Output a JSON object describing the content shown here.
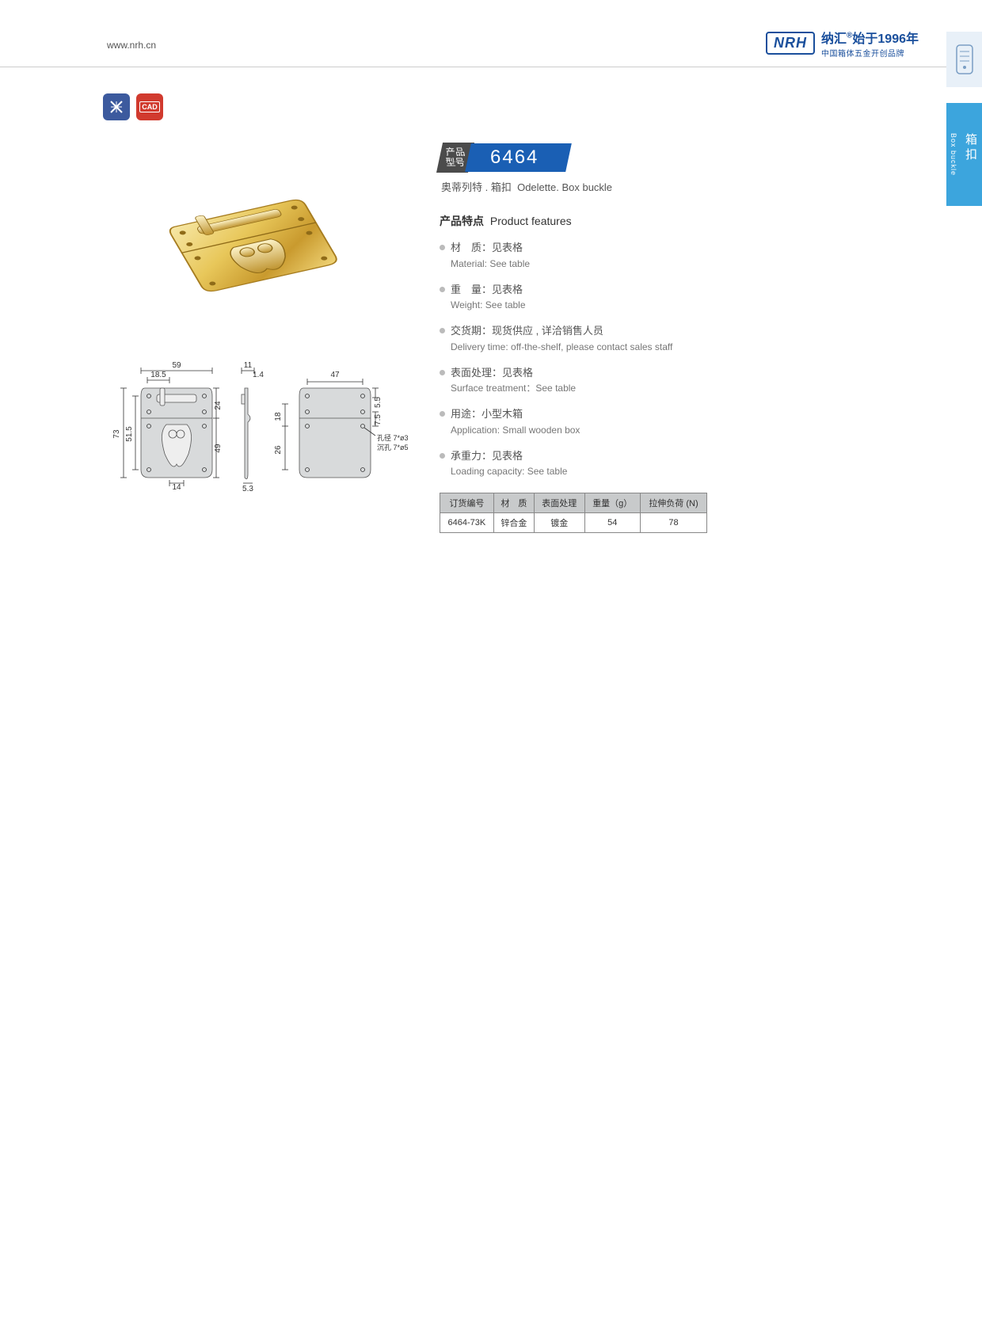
{
  "header": {
    "url": "www.nrh.cn",
    "logo": "NRH",
    "brand_cn": "纳汇",
    "reg": "®",
    "since": "始于1996年",
    "tagline": "中国箱体五金开创品牌"
  },
  "sidetab": {
    "cn": "箱扣",
    "en": "Box buckle"
  },
  "icons": {
    "a": "✕✕",
    "b": "CAD"
  },
  "model": {
    "label_l1": "产品",
    "label_l2": "型号",
    "number": "6464",
    "sub_cn": "奥蒂列特 . 箱扣",
    "sub_en": "Odelette. Box buckle"
  },
  "features": {
    "title_cn": "产品特点",
    "title_en": "Product features",
    "items": [
      {
        "cn": "材　质：见表格",
        "en": "Material: See table"
      },
      {
        "cn": "重　量：见表格",
        "en": "Weight: See table"
      },
      {
        "cn": "交货期：现货供应 , 详洽销售人员",
        "en": "Delivery time: off-the-shelf, please contact sales staff"
      },
      {
        "cn": "表面处理：见表格",
        "en": "Surface treatment：See table"
      },
      {
        "cn": "用途：小型木箱",
        "en": "Application: Small wooden box"
      },
      {
        "cn": "承重力：见表格",
        "en": "Loading capacity: See table"
      }
    ]
  },
  "table": {
    "headers": [
      "订货编号",
      "材　质",
      "表面处理",
      "重量（g）",
      "拉伸负荷 (N)"
    ],
    "rows": [
      [
        "6464-73K",
        "锌合金",
        "镀金",
        "54",
        "78"
      ]
    ]
  },
  "dims": {
    "w59": "59",
    "w185": "18.5",
    "w11": "11",
    "w14_top": "1.4",
    "w47": "47",
    "h73": "73",
    "h515": "51.5",
    "h24": "24",
    "h49": "49",
    "h53": "5.3",
    "h18": "18",
    "h26": "26",
    "h55": "5.5",
    "h75": "7.5",
    "w14": "14",
    "hole1": "孔径 7*ø3",
    "hole2": "沉孔 7*ø5"
  }
}
